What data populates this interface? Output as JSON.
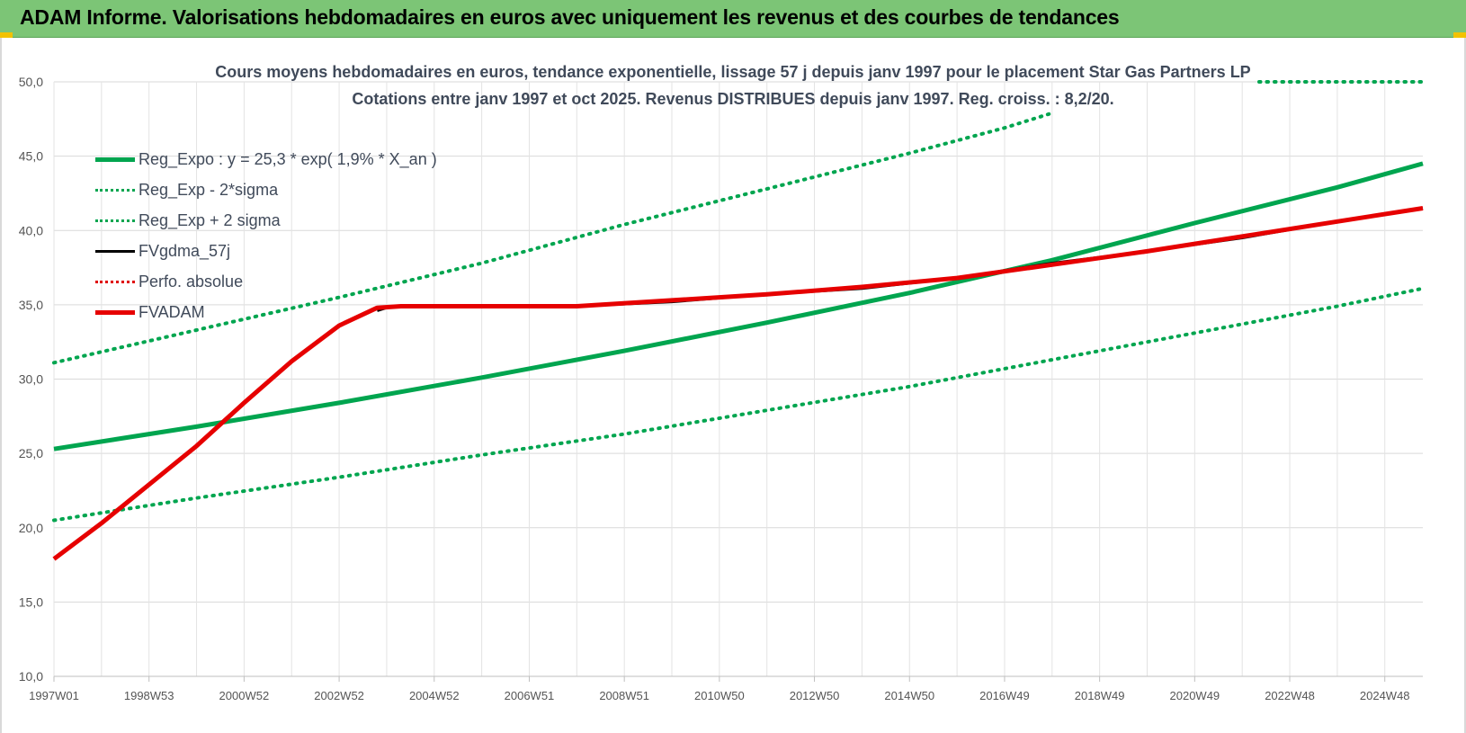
{
  "banner": {
    "title": "ADAM Informe. Valorisations hebdomadaires en euros avec uniquement les revenus et des courbes de tendances"
  },
  "chart_data": {
    "type": "line",
    "title": "Cours moyens hebdomadaires en euros, tendance exponentielle, lissage 57 j depuis janv 1997 pour le placement Star Gas Partners LP",
    "subtitle": "Cotations entre janv 1997 et oct 2025. Revenus DISTRIBUES depuis janv 1997. Reg. croiss. : 8,2/20.",
    "xlabel": "",
    "ylabel": "",
    "ylim": [
      10,
      50
    ],
    "xlim": [
      1997.0,
      2025.8
    ],
    "yticks": [
      "10,0",
      "15,0",
      "20,0",
      "25,0",
      "30,0",
      "35,0",
      "40,0",
      "45,0",
      "50,0"
    ],
    "xticks": [
      "1997W01",
      "1998W53",
      "2000W52",
      "2002W52",
      "2004W52",
      "2006W51",
      "2008W51",
      "2010W50",
      "2012W50",
      "2014W50",
      "2016W49",
      "2018W49",
      "2020W49",
      "2022W48",
      "2024W48"
    ],
    "grid": true,
    "legend_position": "top-left",
    "series": [
      {
        "name": "Reg_Expo : y = 25,3 * exp( 1,9% *  X_an )",
        "style": "solid",
        "color": "#00a54f",
        "x": [
          1997.0,
          2000.0,
          2003.0,
          2006.0,
          2009.0,
          2012.0,
          2015.0,
          2018.0,
          2021.0,
          2024.0,
          2025.8
        ],
        "y": [
          25.3,
          26.8,
          28.4,
          30.1,
          31.9,
          33.8,
          35.8,
          38.0,
          40.5,
          42.9,
          44.5
        ]
      },
      {
        "name": "Reg_Exp - 2*sigma",
        "style": "dotted",
        "color": "#00a54f",
        "x": [
          1997.0,
          2000.0,
          2003.0,
          2006.0,
          2009.0,
          2012.0,
          2015.0,
          2018.0,
          2021.0,
          2024.0,
          2025.8
        ],
        "y": [
          20.5,
          22.0,
          23.4,
          24.9,
          26.3,
          27.9,
          29.5,
          31.3,
          33.1,
          34.9,
          36.1
        ]
      },
      {
        "name": "Reg_Exp + 2 sigma",
        "style": "dotted",
        "color": "#00a54f",
        "x": [
          1997.0,
          2000.0,
          2003.0,
          2006.0,
          2009.0,
          2012.0,
          2015.0,
          2017.0,
          2018.0,
          2018.01,
          2025.8
        ],
        "y": [
          31.1,
          33.3,
          35.5,
          37.8,
          40.4,
          42.8,
          45.2,
          46.9,
          47.9,
          null,
          null
        ]
      },
      {
        "name": "FVgdma_57j",
        "style": "solid",
        "color": "#000000",
        "x": [
          2003.8,
          2004.0,
          2004.3,
          2006.0,
          2008.0,
          2010.0,
          2012.0,
          2014.0,
          2016.0,
          2018.0,
          2020.0,
          2022.0,
          2024.0,
          2025.8
        ],
        "y": [
          34.6,
          34.8,
          34.9,
          34.9,
          34.9,
          35.2,
          35.7,
          36.1,
          36.8,
          37.8,
          38.6,
          39.5,
          40.6,
          41.5
        ]
      },
      {
        "name": "Perfo. absolue",
        "style": "dotted",
        "color": "#e00000",
        "x": [],
        "y": []
      },
      {
        "name": "FVADAM",
        "style": "solid",
        "color": "#e60000",
        "x": [
          1997.0,
          1998.0,
          1999.0,
          2000.0,
          2001.0,
          2002.0,
          2003.0,
          2003.8,
          2004.3,
          2006.0,
          2008.0,
          2010.0,
          2012.0,
          2014.0,
          2016.0,
          2018.0,
          2020.0,
          2022.0,
          2024.0,
          2025.8
        ],
        "y": [
          17.9,
          20.3,
          22.9,
          25.5,
          28.4,
          31.2,
          33.6,
          34.8,
          34.9,
          34.9,
          34.9,
          35.3,
          35.7,
          36.2,
          36.8,
          37.7,
          38.6,
          39.6,
          40.6,
          41.5
        ]
      }
    ]
  }
}
